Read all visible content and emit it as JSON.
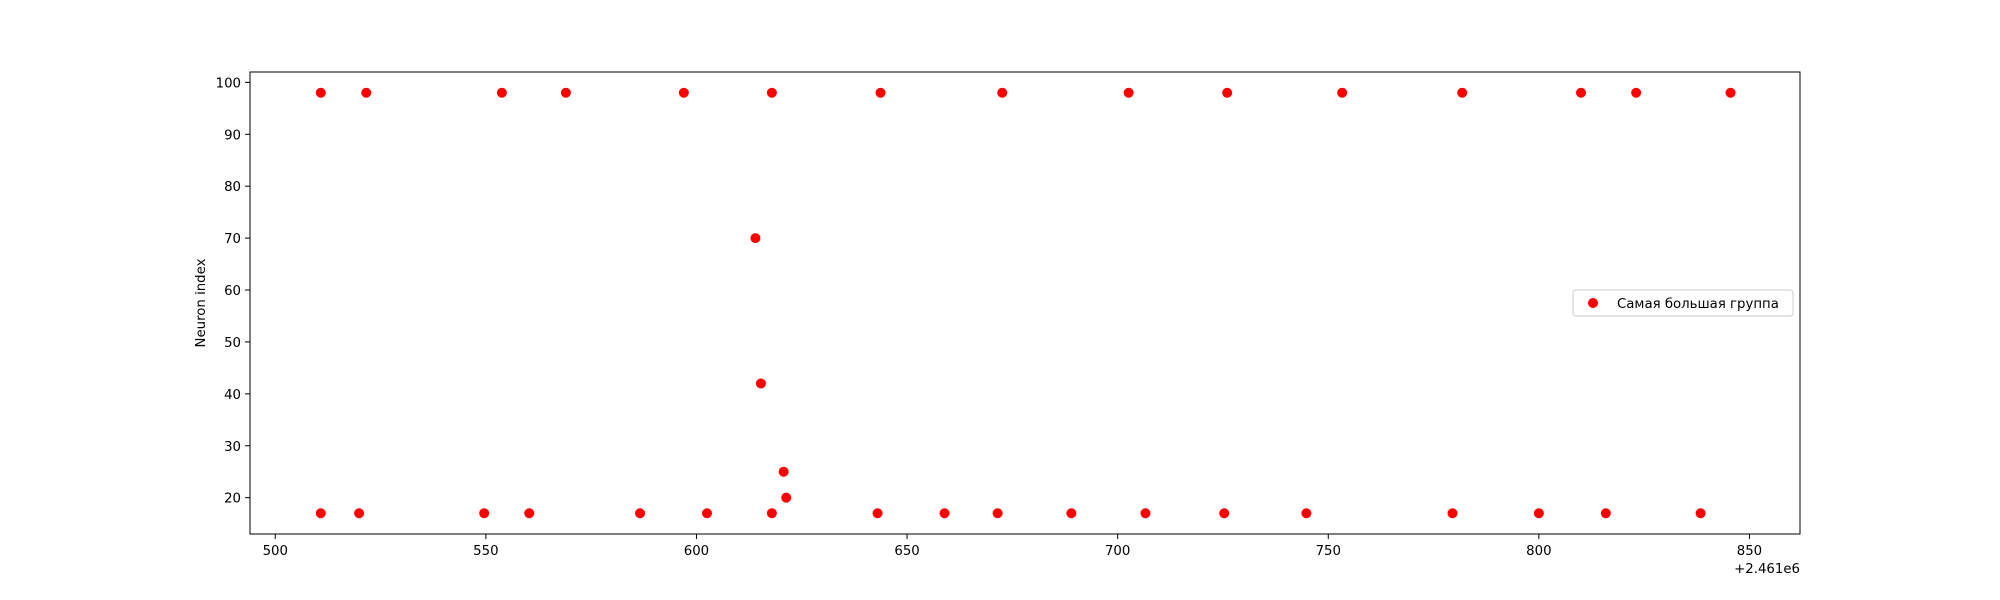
{
  "chart_data": {
    "type": "scatter",
    "xlabel": "",
    "ylabel": "Neuron index",
    "x_offset_label": "+2.461e6",
    "x_offset": 2461000,
    "xlim": [
      2461494,
      2461862
    ],
    "ylim": [
      13,
      102
    ],
    "x_ticks": [
      2461500,
      2461550,
      2461600,
      2461650,
      2461700,
      2461750,
      2461800,
      2461850
    ],
    "x_tick_labels": [
      "500",
      "550",
      "600",
      "650",
      "700",
      "750",
      "800",
      "850"
    ],
    "y_ticks": [
      20,
      30,
      40,
      50,
      60,
      70,
      80,
      90,
      100
    ],
    "y_tick_labels": [
      "20",
      "30",
      "40",
      "50",
      "60",
      "70",
      "80",
      "90",
      "100"
    ],
    "grid": false,
    "legend_position": "center-right",
    "series": [
      {
        "name": "Самая большая группа",
        "color": "#ff0000",
        "marker": "circle",
        "points": [
          {
            "x": 2461510.8,
            "y": 98
          },
          {
            "x": 2461521.6,
            "y": 98
          },
          {
            "x": 2461553.8,
            "y": 98
          },
          {
            "x": 2461569.0,
            "y": 98
          },
          {
            "x": 2461597.0,
            "y": 98
          },
          {
            "x": 2461617.9,
            "y": 98
          },
          {
            "x": 2461643.7,
            "y": 98
          },
          {
            "x": 2461672.6,
            "y": 98
          },
          {
            "x": 2461702.6,
            "y": 98
          },
          {
            "x": 2461726.0,
            "y": 98
          },
          {
            "x": 2461753.3,
            "y": 98
          },
          {
            "x": 2461781.8,
            "y": 98
          },
          {
            "x": 2461810.0,
            "y": 98
          },
          {
            "x": 2461823.1,
            "y": 98
          },
          {
            "x": 2461845.5,
            "y": 98
          },
          {
            "x": 2461614.0,
            "y": 70
          },
          {
            "x": 2461615.3,
            "y": 42
          },
          {
            "x": 2461620.7,
            "y": 25
          },
          {
            "x": 2461621.3,
            "y": 20
          },
          {
            "x": 2461510.8,
            "y": 17
          },
          {
            "x": 2461519.9,
            "y": 17
          },
          {
            "x": 2461549.6,
            "y": 17
          },
          {
            "x": 2461560.3,
            "y": 17
          },
          {
            "x": 2461586.6,
            "y": 17
          },
          {
            "x": 2461602.5,
            "y": 17
          },
          {
            "x": 2461617.9,
            "y": 17
          },
          {
            "x": 2461643.0,
            "y": 17
          },
          {
            "x": 2461658.9,
            "y": 17
          },
          {
            "x": 2461671.5,
            "y": 17
          },
          {
            "x": 2461689.0,
            "y": 17
          },
          {
            "x": 2461706.6,
            "y": 17
          },
          {
            "x": 2461725.3,
            "y": 17
          },
          {
            "x": 2461744.8,
            "y": 17
          },
          {
            "x": 2461779.5,
            "y": 17
          },
          {
            "x": 2461800.0,
            "y": 17
          },
          {
            "x": 2461815.9,
            "y": 17
          },
          {
            "x": 2461838.4,
            "y": 17
          }
        ]
      }
    ]
  }
}
